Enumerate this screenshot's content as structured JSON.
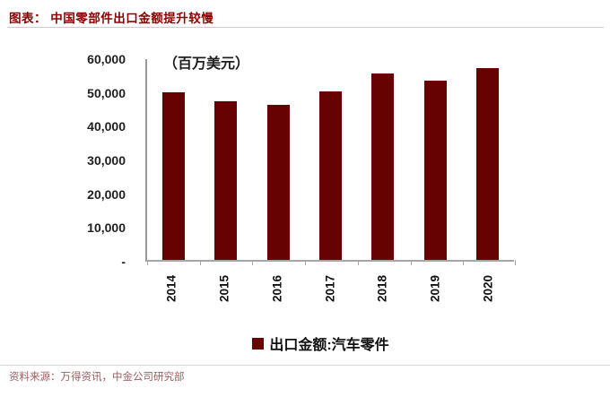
{
  "header": {
    "title": "图表： 中国零部件出口金额提升较慢",
    "title_color": "#8b0000"
  },
  "chart_data": {
    "type": "bar",
    "title": "中国零部件出口金额提升较慢",
    "unit_label": "（百万美元）",
    "categories": [
      "2014",
      "2015",
      "2016",
      "2017",
      "2018",
      "2019",
      "2020"
    ],
    "values": [
      49600,
      47000,
      45800,
      49800,
      55300,
      53200,
      56800
    ],
    "series": [
      {
        "name": "出口金额:汽车零件",
        "values": [
          49600,
          47000,
          45800,
          49800,
          55300,
          53200,
          56800
        ]
      }
    ],
    "xlabel": "",
    "ylabel": "",
    "ylim": [
      0,
      60000
    ],
    "ytick_values": [
      60000,
      50000,
      40000,
      30000,
      20000,
      10000,
      0
    ],
    "ytick_labels": [
      "60,000",
      "50,000",
      "40,000",
      "30,000",
      "20,000",
      "10,000",
      "-"
    ],
    "grid": false,
    "legend_position": "bottom",
    "x_tick_label_rotation": -90,
    "bar_color": "#670202",
    "axis_color": "#a6a6a6"
  },
  "legend": {
    "label": "出口金额:汽车零件"
  },
  "footer": {
    "source": "资料来源：万得资讯，中金公司研究部",
    "source_color": "#9c5c5c"
  }
}
